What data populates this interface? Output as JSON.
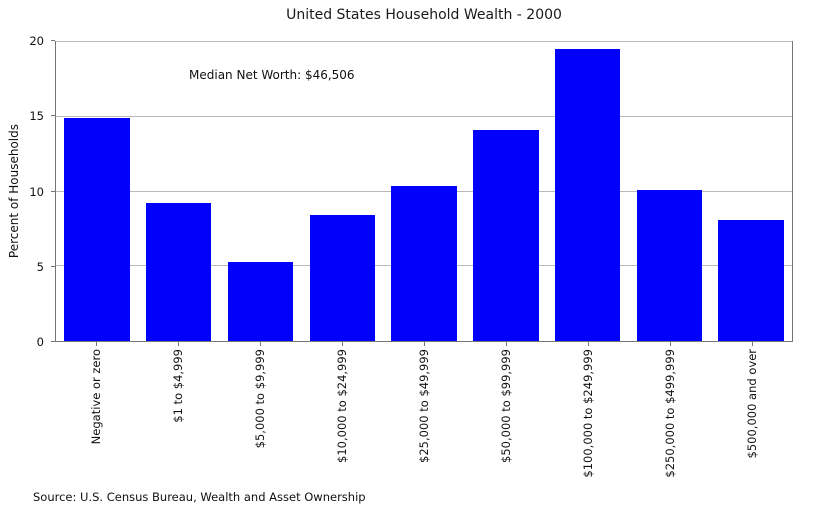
{
  "figure": {
    "source": "Source: U.S. Census Bureau, Wealth and Asset Ownership"
  },
  "chart_data": {
    "type": "bar",
    "title": "United States Household Wealth - 2000",
    "annotation": "Median Net Worth: $46,506",
    "categories": [
      "Negative or zero",
      "$1 to $4,999",
      "$5,000 to $9,999",
      "$10,000 to $24,999",
      "$25,000 to $49,999",
      "$50,000 to $99,999",
      "$100,000 to $249,999",
      "$250,000 to $499,999",
      "$500,000 and over"
    ],
    "values": [
      14.9,
      9.2,
      5.3,
      8.4,
      10.4,
      14.1,
      19.5,
      10.1,
      8.1
    ],
    "xlabel": "",
    "ylabel": "Percent of Households",
    "ylim": [
      0,
      20
    ],
    "yticks": [
      0,
      5,
      10,
      15,
      20
    ],
    "gridline_values": [
      5,
      10,
      15,
      20
    ],
    "grid": true,
    "legend_position": "none",
    "x_tick_rotation": 90
  },
  "colors": {
    "bar": "#0000fb",
    "grid": "#b9b9b9",
    "spine": "#767676",
    "text": "#141414"
  }
}
